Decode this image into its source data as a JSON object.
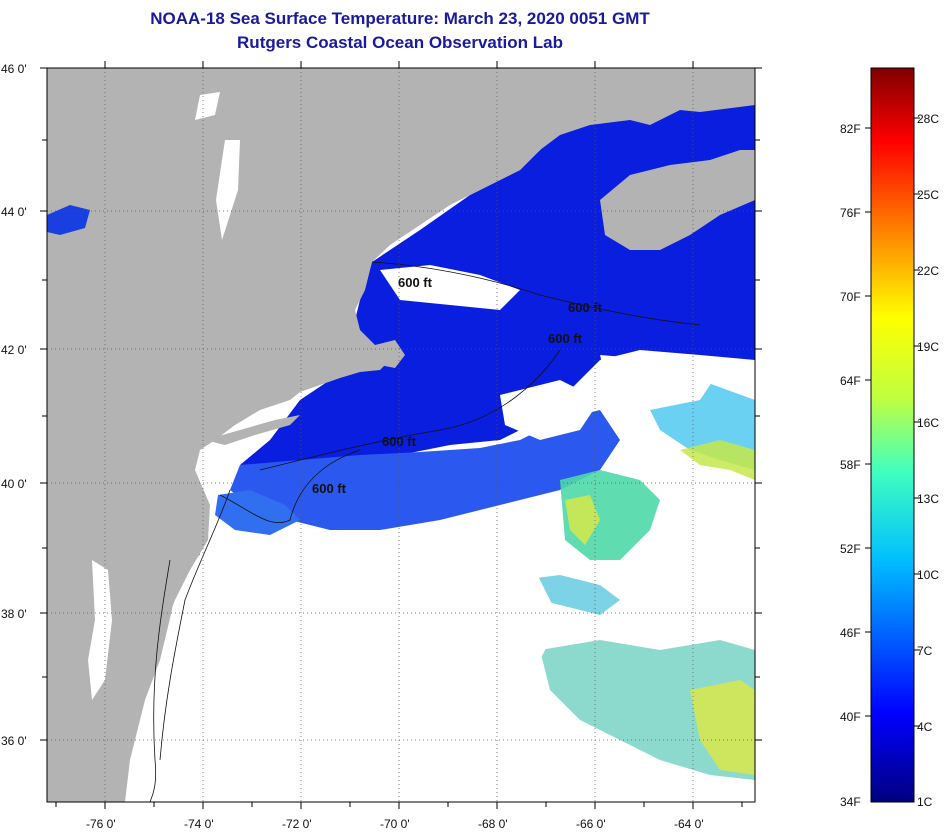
{
  "title": "NOAA-18 Sea Surface Temperature:  March 23, 2020 0051 GMT",
  "subtitle": "Rutgers Coastal Ocean Observation Lab",
  "lat_labels": [
    "46 0'",
    "44 0'",
    "42 0'",
    "40 0'",
    "38 0'",
    "36 0'"
  ],
  "lon_labels": [
    "-76 0'",
    "-74 0'",
    "-72 0'",
    "-70 0'",
    "-68 0'",
    "-66 0'",
    "-64 0'"
  ],
  "contour_labels": [
    "600 ft",
    "600 ft",
    "600 ft",
    "600 ft",
    "600 ft"
  ],
  "colorbar": {
    "fahrenheit_labels": [
      "82F",
      "76F",
      "70F",
      "64F",
      "58F",
      "52F",
      "46F",
      "40F",
      "34F"
    ],
    "celsius_labels": [
      "28C",
      "25C",
      "22C",
      "19C",
      "16C",
      "13C",
      "10C",
      "7C",
      "4C",
      "1C"
    ]
  },
  "colors": {
    "land": "#b3b3b3",
    "cloud": "#ffffff",
    "cold_water": "#0a1ee0",
    "mid_water": "#2b6df0",
    "warm_water": "#e6e63a",
    "title": "#1a1a9c"
  }
}
